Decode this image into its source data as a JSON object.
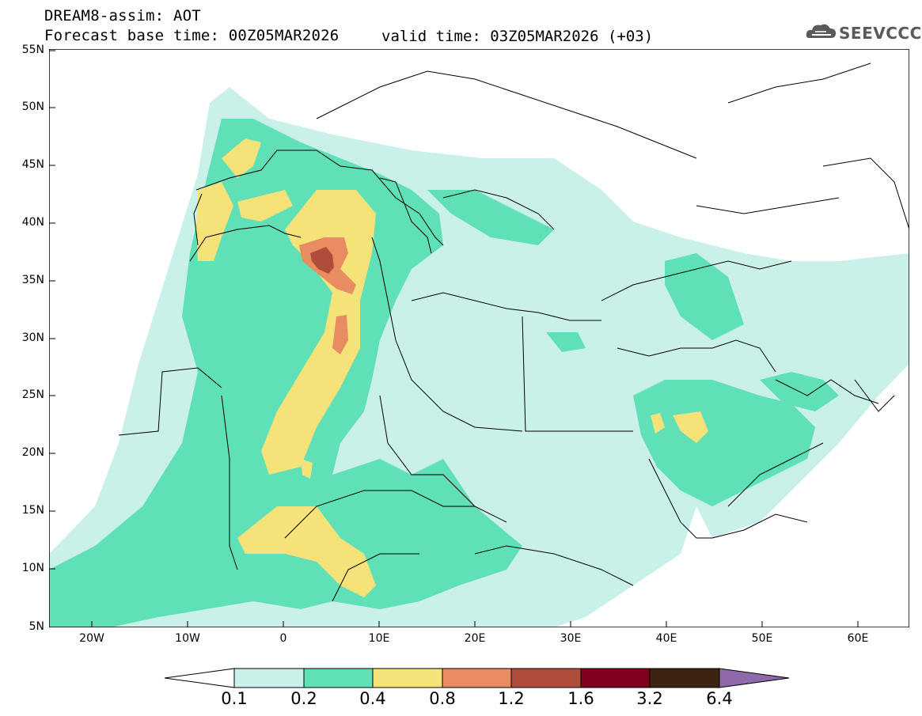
{
  "title": {
    "line1": "DREAM8-assim: AOT",
    "line2": "Forecast base time: 00Z05MAR2026",
    "valid": "valid time: 03Z05MAR2026 (+03)"
  },
  "logo": {
    "text": "SEEVCCC"
  },
  "axes": {
    "lat_labels": [
      "55N",
      "50N",
      "45N",
      "40N",
      "35N",
      "30N",
      "25N",
      "20N",
      "15N",
      "10N",
      "5N"
    ],
    "lon_labels": [
      "20W",
      "10W",
      "0",
      "10E",
      "20E",
      "30E",
      "40E",
      "50E",
      "60E"
    ]
  },
  "colorbar": {
    "labels": [
      "0.1",
      "0.2",
      "0.4",
      "0.8",
      "1.2",
      "1.6",
      "3.2",
      "6.4"
    ],
    "colors": [
      "#ffffff",
      "#c9f1ea",
      "#5fe0b7",
      "#f5e37a",
      "#e88c62",
      "#b04c3a",
      "#800020",
      "#3c2410",
      "#8e6aaa"
    ]
  },
  "colors": {
    "level1": "#c9f1ea",
    "level2": "#5fe0b7",
    "level3": "#f5e37a",
    "level4": "#e88c62",
    "level5": "#b04c3a"
  }
}
